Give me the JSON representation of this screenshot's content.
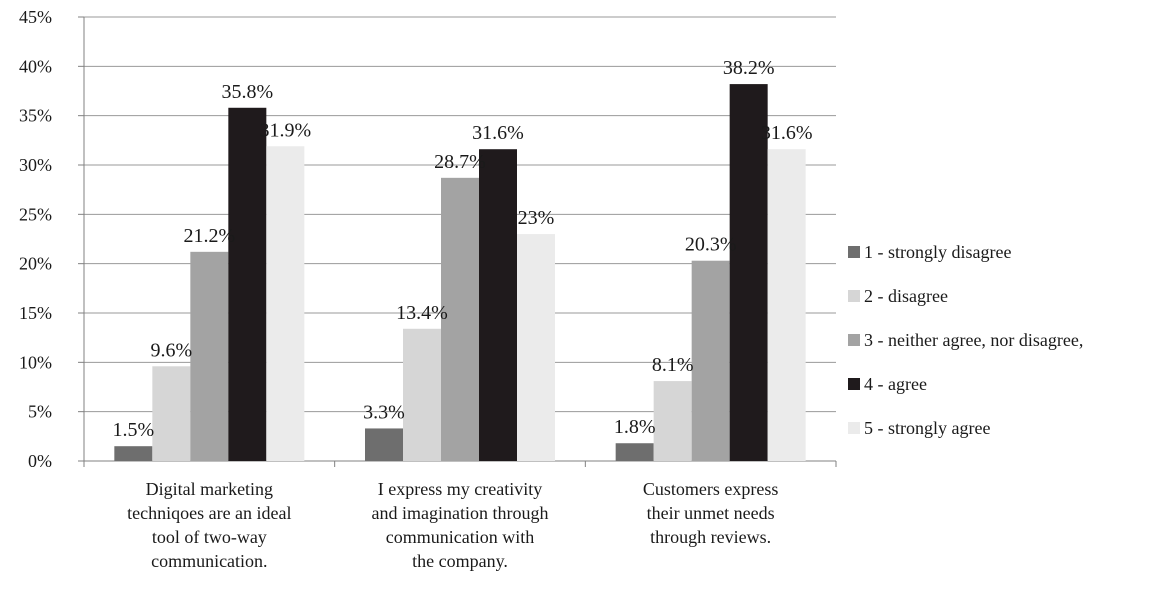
{
  "chart_data": {
    "type": "bar",
    "title": "",
    "xlabel": "",
    "ylabel": "",
    "ylim": [
      0,
      45
    ],
    "ytick_step": 5,
    "ytick_format": "percent",
    "grid": true,
    "legend_position": "right",
    "categories": [
      [
        "Digital marketing",
        "techniqoes are an ideal",
        "tool of two-way",
        "communication."
      ],
      [
        "I express my creativity",
        "and imagination through",
        "communication with",
        "the company."
      ],
      [
        "Customers express",
        "their unmet needs",
        "through reviews."
      ]
    ],
    "series": [
      {
        "name": "1 - strongly disagree",
        "color": "#6e6e6e",
        "values": [
          1.5,
          3.3,
          1.8
        ],
        "labels": [
          "1.5%",
          "3.3%",
          "1.8%"
        ]
      },
      {
        "name": "2 - disagree",
        "color": "#d6d6d6",
        "values": [
          9.6,
          13.4,
          8.1
        ],
        "labels": [
          "9.6%",
          "13.4%",
          "8.1%"
        ]
      },
      {
        "name": "3 - neither agree, nor disagree,",
        "color": "#a3a3a3",
        "values": [
          21.2,
          28.7,
          20.3
        ],
        "labels": [
          "21.2%",
          "28.7%",
          "20.3%"
        ]
      },
      {
        "name": "4 - agree",
        "color": "#1f1a1c",
        "values": [
          35.8,
          31.6,
          38.2
        ],
        "labels": [
          "35.8%",
          "31.6%",
          "38.2%"
        ]
      },
      {
        "name": "5 - strongly agree",
        "color": "#ebebeb",
        "values": [
          31.9,
          23,
          31.6
        ],
        "labels": [
          "31.9%",
          "23%",
          "31.6%"
        ]
      }
    ]
  }
}
